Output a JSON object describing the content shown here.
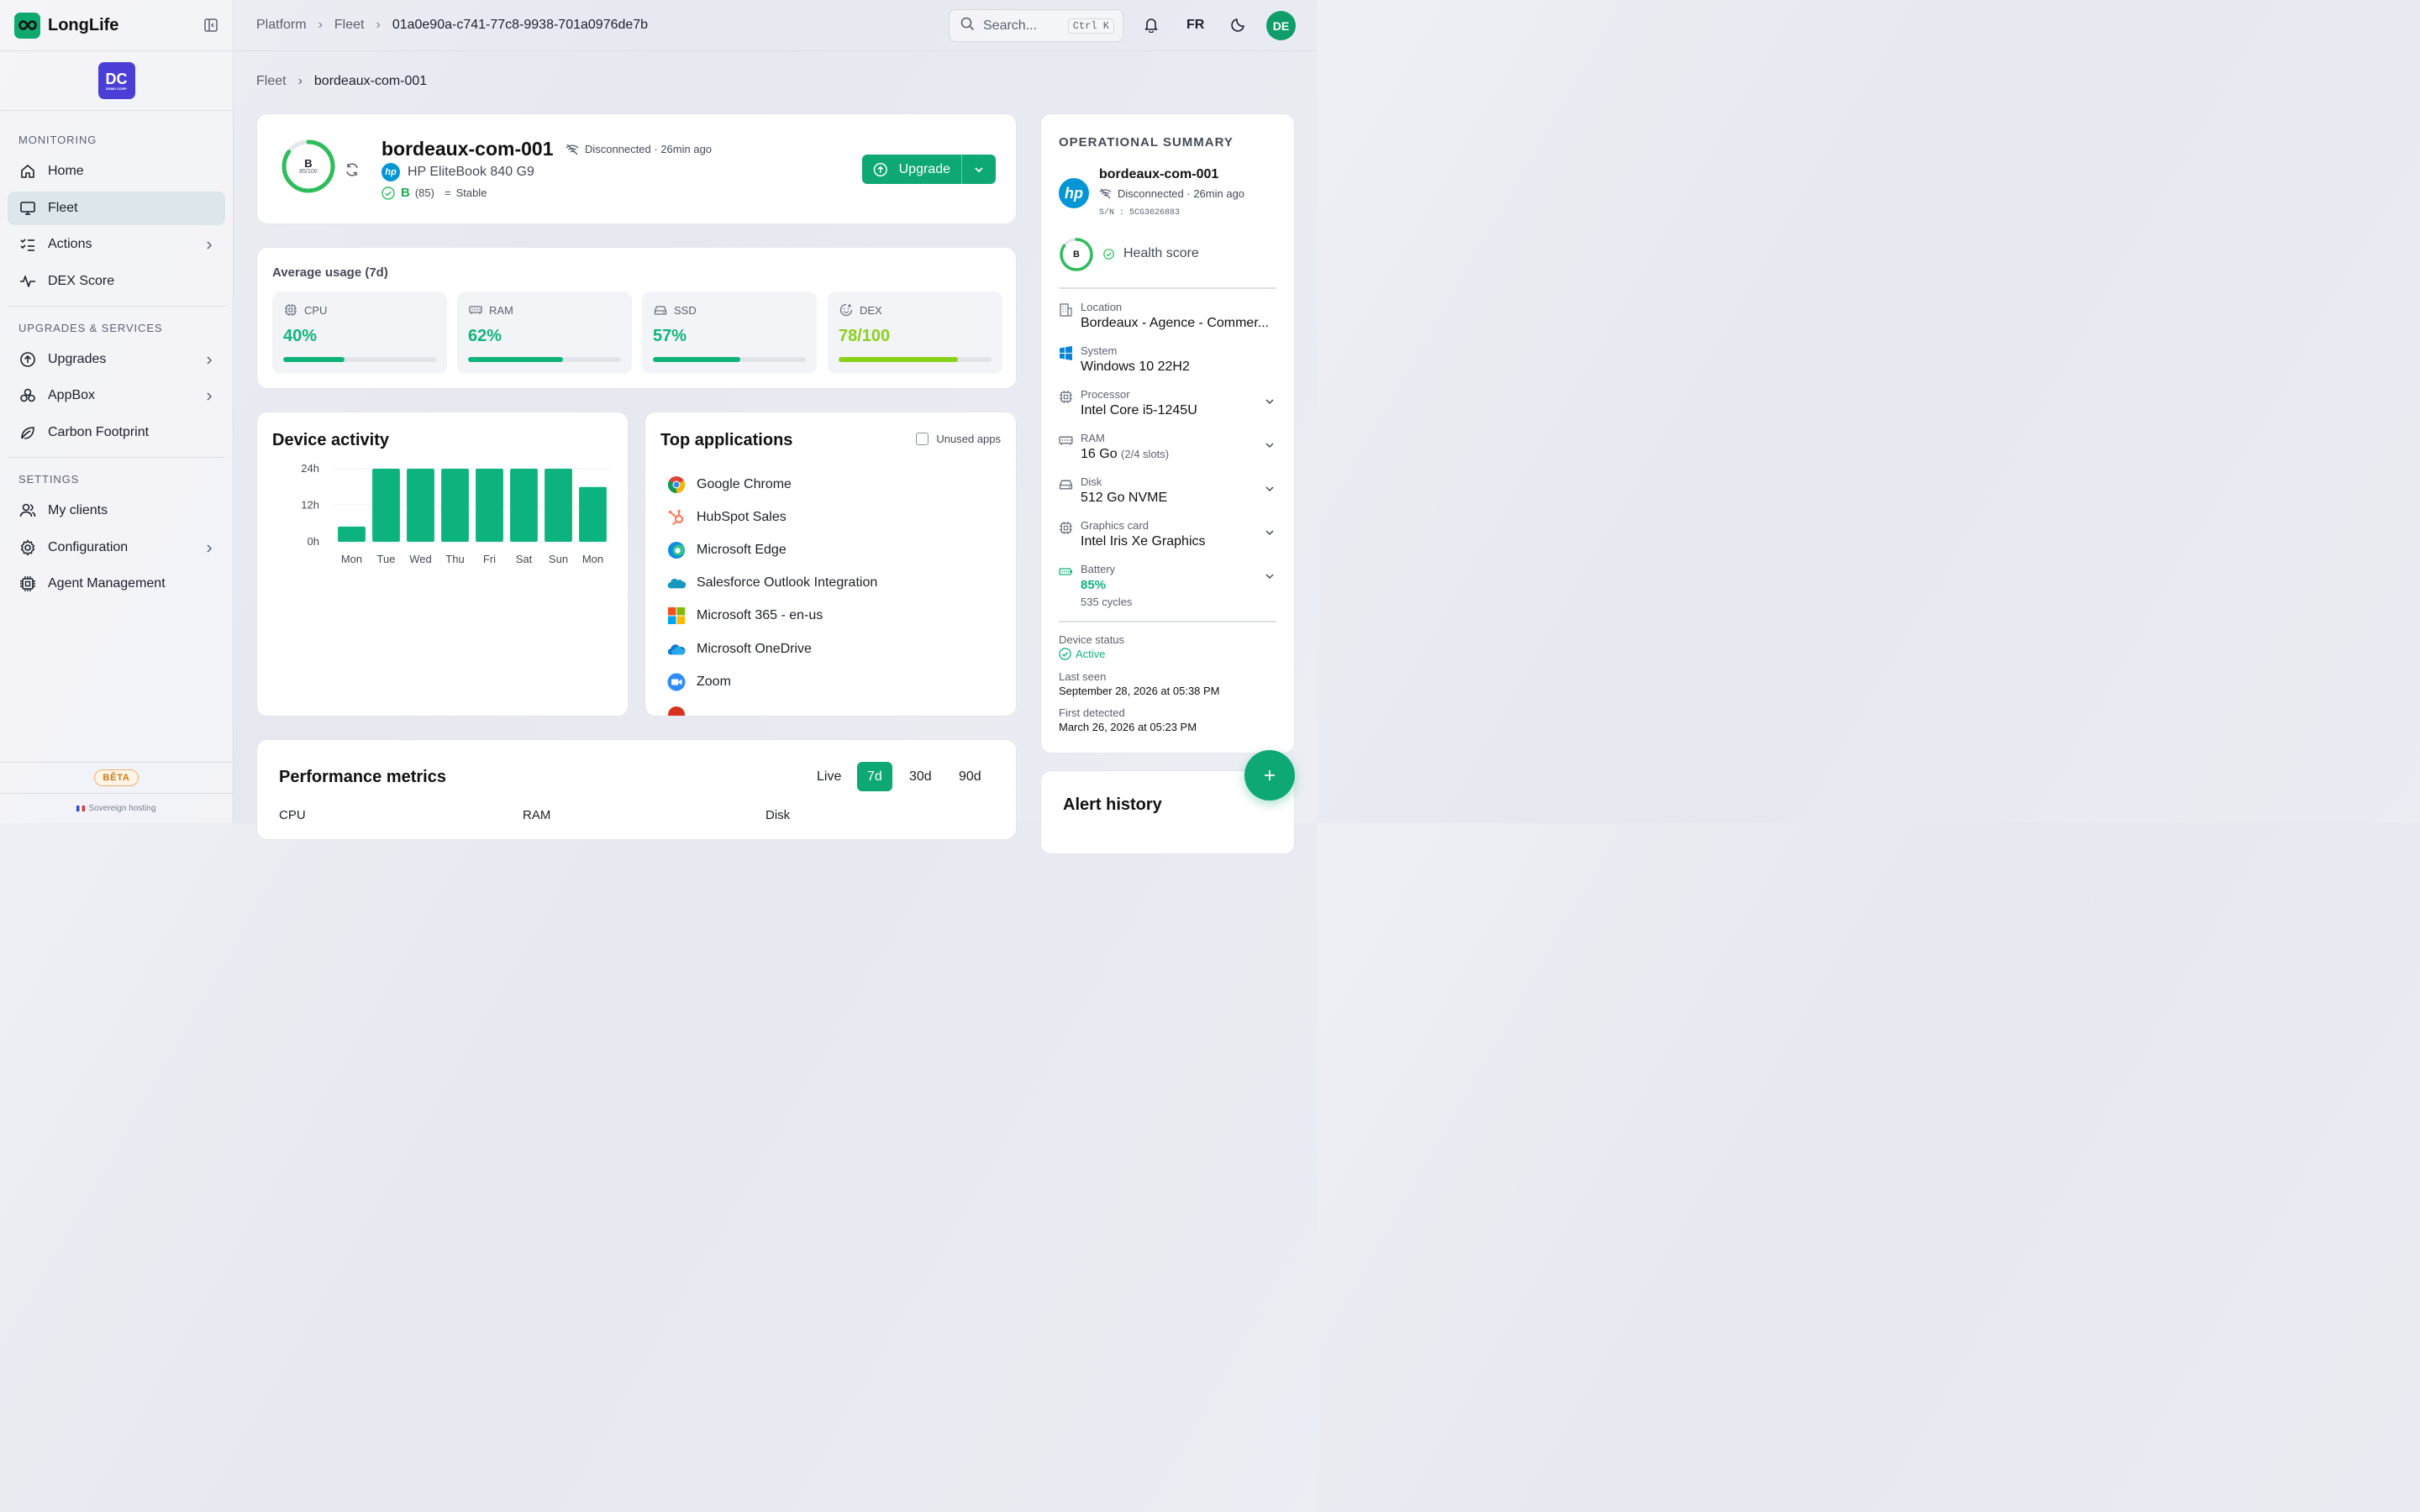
{
  "app": {
    "name": "LongLife",
    "org_initials": "DC",
    "org_sub": "DEMO CORP"
  },
  "sidebar": {
    "sections": [
      {
        "title": "MONITORING",
        "items": [
          {
            "label": "Home",
            "icon": "home-icon"
          },
          {
            "label": "Fleet",
            "icon": "monitor-icon",
            "active": true
          },
          {
            "label": "Actions",
            "icon": "list-check-icon",
            "chevron": true
          },
          {
            "label": "DEX Score",
            "icon": "pulse-icon"
          }
        ]
      },
      {
        "title": "UPGRADES & SERVICES",
        "items": [
          {
            "label": "Upgrades",
            "icon": "arrow-up-circle-icon",
            "chevron": true
          },
          {
            "label": "AppBox",
            "icon": "boxes-icon",
            "chevron": true
          },
          {
            "label": "Carbon Footprint",
            "icon": "leaf-icon"
          }
        ]
      },
      {
        "title": "SETTINGS",
        "items": [
          {
            "label": "My clients",
            "icon": "users-icon"
          },
          {
            "label": "Configuration",
            "icon": "gear-icon",
            "chevron": true
          },
          {
            "label": "Agent Management",
            "icon": "chip-icon"
          }
        ]
      }
    ],
    "beta": "BÊTA",
    "sovereign": "Sovereign hosting"
  },
  "topbar": {
    "breadcrumb": [
      "Platform",
      "Fleet",
      "01a0e90a-c741-77c8-9938-701a0976de7b"
    ],
    "search_placeholder": "Search...",
    "search_shortcut": "Ctrl K",
    "lang": "FR",
    "avatar": "DE"
  },
  "page": {
    "breadcrumb": [
      "Fleet",
      "bordeaux-com-001"
    ]
  },
  "device": {
    "name": "bordeaux-com-001",
    "status": "Disconnected · 26min ago",
    "model": "HP EliteBook 840 G9",
    "grade": "B",
    "score": "(85)",
    "score_label": "85/100",
    "score_value": 85,
    "trend": "Stable",
    "upgrade_label": "Upgrade"
  },
  "usage": {
    "title": "Average usage (7d)",
    "tiles": [
      {
        "label": "CPU",
        "value": "40%",
        "pct": 40,
        "icon": "cpu-icon",
        "color": "#10b47a"
      },
      {
        "label": "RAM",
        "value": "62%",
        "pct": 62,
        "icon": "memory-icon",
        "color": "#10b47a"
      },
      {
        "label": "SSD",
        "value": "57%",
        "pct": 57,
        "icon": "drive-icon",
        "color": "#10b47a"
      },
      {
        "label": "DEX",
        "value": "78/100",
        "pct": 78,
        "icon": "smile-gauge-icon",
        "color": "#8ad11b"
      }
    ]
  },
  "activity": {
    "title": "Device activity"
  },
  "chart_data": {
    "type": "bar",
    "title": "Device activity",
    "categories": [
      "Mon",
      "Tue",
      "Wed",
      "Thu",
      "Fri",
      "Sat",
      "Sun",
      "Mon"
    ],
    "values": [
      5,
      24,
      24,
      24,
      24,
      24,
      24,
      18
    ],
    "yticks": [
      "24h",
      "12h",
      "0h"
    ],
    "ylim": [
      0,
      24
    ],
    "color": "#0db37e"
  },
  "apps": {
    "title": "Top applications",
    "unused_label": "Unused apps",
    "items": [
      {
        "name": "Google Chrome",
        "icon": "chrome-icon"
      },
      {
        "name": "HubSpot Sales",
        "icon": "hubspot-icon"
      },
      {
        "name": "Microsoft Edge",
        "icon": "edge-icon"
      },
      {
        "name": "Salesforce Outlook Integration",
        "icon": "salesforce-icon"
      },
      {
        "name": "Microsoft 365 - en-us",
        "icon": "microsoft-icon"
      },
      {
        "name": "Microsoft OneDrive",
        "icon": "onedrive-icon"
      },
      {
        "name": "Zoom",
        "icon": "zoom-icon"
      }
    ]
  },
  "performance": {
    "title": "Performance metrics",
    "ranges": [
      "Live",
      "7d",
      "30d",
      "90d"
    ],
    "active_range": "7d",
    "columns": [
      "CPU",
      "RAM",
      "Disk"
    ]
  },
  "summary": {
    "title": "OPERATIONAL SUMMARY",
    "name": "bordeaux-com-001",
    "status": "Disconnected · 26min ago",
    "sn": "S/N : 5CG3626883",
    "grade": "B",
    "health_label": "Health score",
    "specs": [
      {
        "label": "Location",
        "value": "Bordeaux - Agence - Commer...",
        "icon": "building-icon"
      },
      {
        "label": "System",
        "value": "Windows 10 22H2",
        "icon": "windows-icon"
      },
      {
        "label": "Processor",
        "value": "Intel Core i5-1245U",
        "icon": "cpu-icon",
        "chevron": true
      },
      {
        "label": "RAM",
        "value": "16 Go",
        "extra": "(2/4 slots)",
        "icon": "memory-icon",
        "chevron": true
      },
      {
        "label": "Disk",
        "value": "512 Go NVME",
        "icon": "drive-icon",
        "chevron": true
      },
      {
        "label": "Graphics card",
        "value": "Intel Iris Xe Graphics",
        "icon": "gpu-icon",
        "chevron": true
      },
      {
        "label": "Battery",
        "value": "85%",
        "sub": "535 cycles",
        "icon": "battery-icon",
        "chevron": true
      }
    ],
    "device_status_label": "Device status",
    "device_status": "Active",
    "last_seen_label": "Last seen",
    "last_seen": "September 28, 2026 at 05:38 PM",
    "first_detected_label": "First detected",
    "first_detected": "March 26, 2026 at 05:23 PM"
  },
  "alerts": {
    "title": "Alert history"
  }
}
